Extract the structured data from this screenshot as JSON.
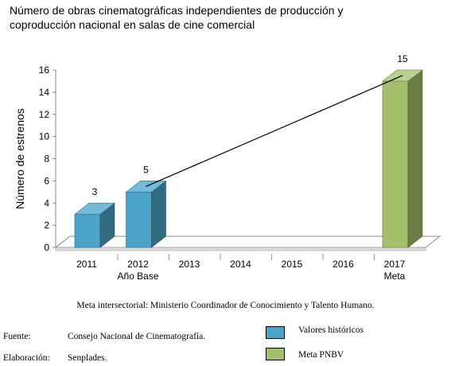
{
  "chart_data": {
    "type": "bar",
    "title_lines": [
      "Número de obras cinematográficas independientes de producción y",
      "coproducción nacional en salas de cine comercial"
    ],
    "ylabel": "Número de estrenos",
    "xlabel": "",
    "ylim": [
      0,
      16
    ],
    "yticks": [
      0,
      2,
      4,
      6,
      8,
      10,
      12,
      14,
      16
    ],
    "categories": [
      "2011",
      "2012",
      "2013",
      "2014",
      "2015",
      "2016",
      "2017"
    ],
    "category_sublabels": [
      "",
      "Año Base",
      "",
      "",
      "",
      "",
      "Meta"
    ],
    "series": [
      {
        "name": "Valores históricos",
        "color": "#4aa3c9",
        "values": [
          3,
          5,
          null,
          null,
          null,
          null,
          null
        ]
      },
      {
        "name": "Meta PNBV",
        "color": "#a4bf6a",
        "values": [
          null,
          null,
          null,
          null,
          null,
          null,
          15
        ]
      }
    ],
    "data_labels": [
      "3",
      "5",
      "",
      "",
      "",
      "",
      "15"
    ],
    "trend_line": {
      "from_category": "2012",
      "from_value": 5,
      "to_category": "2017",
      "to_value": 15
    },
    "grid": false,
    "legend_position": "bottom-right"
  },
  "source_note": "Meta intersectorial: Ministerio Coordinador de Conocimiento y Talento Humano.",
  "footer": {
    "source_label": "Fuente:",
    "source_value": "Consejo Nacional de Cinematografía.",
    "elaboration_label": "Elaboración:",
    "elaboration_value": "Senplades."
  },
  "legend": [
    {
      "label": "Valores históricos",
      "color": "#4aa3c9"
    },
    {
      "label": "Meta PNBV",
      "color": "#a4bf6a"
    }
  ]
}
